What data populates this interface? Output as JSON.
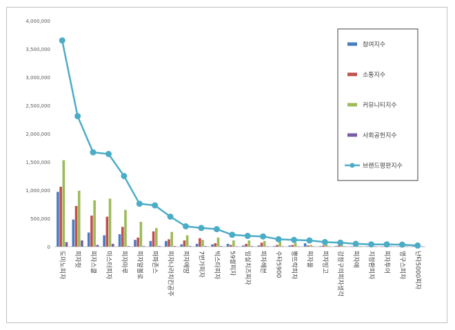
{
  "chart_data": {
    "type": "bar",
    "title": "",
    "xlabel": "",
    "ylabel": "",
    "ylim": [
      0,
      4000000
    ],
    "yticks": [
      "0",
      "500,000",
      "1,000,000",
      "1,500,000",
      "2,000,000",
      "2,500,000",
      "3,000,000",
      "3,500,000",
      "4,000,000"
    ],
    "grid": false,
    "legend_position": "top-right",
    "categories": [
      "도미노피자",
      "피자헛",
      "피자스쿨",
      "미스터피자",
      "피자마루",
      "피자알볼로",
      "파파존스",
      "피자나라치킨공주",
      "피자에땅",
      "7번가피자",
      "빅스타피자",
      "59쌀피자",
      "임실치즈피자",
      "피자헤븐",
      "수타5900",
      "뽕뜨락피자",
      "피자올",
      "피자빙고",
      "강정구의피자생각",
      "피자애",
      "지정환피자",
      "피자투어",
      "영구스피자",
      "난타5000피자"
    ],
    "series": [
      {
        "name": "참여지수",
        "kind": "bar",
        "color": "#4a7cc1",
        "values": [
          970000,
          480000,
          250000,
          200000,
          220000,
          120000,
          100000,
          100000,
          40000,
          50000,
          40000,
          50000,
          20000,
          20000,
          10000,
          20000,
          60000,
          10000,
          10000,
          5000,
          5000,
          5000,
          5000,
          3000
        ]
      },
      {
        "name": "소통지수",
        "kind": "bar",
        "color": "#c0504d",
        "values": [
          1060000,
          720000,
          550000,
          530000,
          350000,
          160000,
          270000,
          130000,
          110000,
          150000,
          60000,
          30000,
          50000,
          70000,
          30000,
          30000,
          20000,
          20000,
          20000,
          10000,
          10000,
          10000,
          10000,
          5000
        ]
      },
      {
        "name": "커뮤니티지수",
        "kind": "bar",
        "color": "#9bbb59",
        "values": [
          1530000,
          990000,
          820000,
          850000,
          650000,
          440000,
          330000,
          260000,
          200000,
          120000,
          160000,
          110000,
          110000,
          100000,
          90000,
          70000,
          30000,
          40000,
          30000,
          20000,
          20000,
          20000,
          15000,
          10000
        ]
      },
      {
        "name": "사회공헌지수",
        "kind": "bar",
        "color": "#7b5aa6",
        "values": [
          80000,
          110000,
          30000,
          50000,
          10000,
          10000,
          10000,
          10000,
          10000,
          10000,
          10000,
          5000,
          10000,
          5000,
          5000,
          5000,
          5000,
          5000,
          5000,
          5000,
          5000,
          5000,
          5000,
          3000
        ]
      },
      {
        "name": "브랜드평판지수",
        "kind": "line",
        "color": "#4bacc6",
        "values": [
          3650000,
          2310000,
          1670000,
          1640000,
          1250000,
          760000,
          730000,
          530000,
          360000,
          330000,
          310000,
          210000,
          190000,
          180000,
          130000,
          120000,
          110000,
          80000,
          70000,
          50000,
          40000,
          40000,
          35000,
          20000
        ]
      }
    ]
  }
}
